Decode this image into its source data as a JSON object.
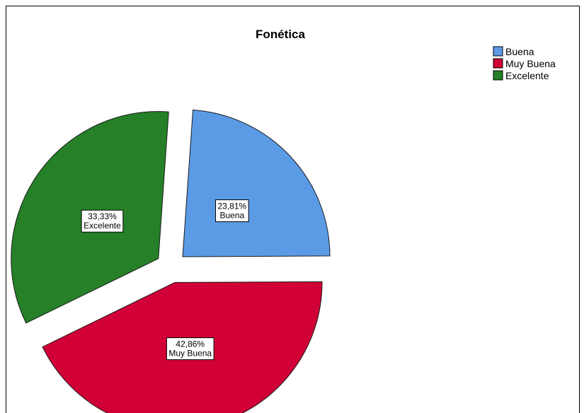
{
  "chart_data": {
    "type": "pie",
    "title": "Fonética",
    "slices": [
      {
        "name": "Buena",
        "percent": 23.81,
        "label": "23,81%",
        "color": "#5b9be6"
      },
      {
        "name": "Muy Buena",
        "percent": 42.86,
        "label": "42,86%",
        "color": "#d10036"
      },
      {
        "name": "Excelente",
        "percent": 33.33,
        "label": "33,33%",
        "color": "#258027"
      }
    ],
    "exploded": true,
    "legend_position": "top-right"
  }
}
